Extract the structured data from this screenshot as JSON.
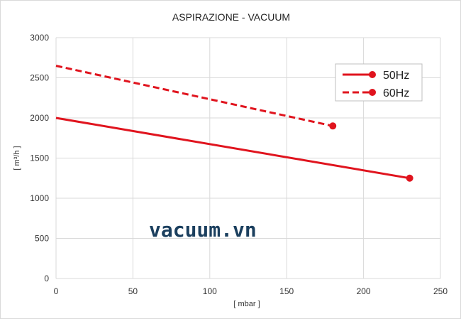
{
  "chart_data": {
    "type": "line",
    "title": "ASPIRAZIONE - VACUUM",
    "xlabel": "[ mbar ]",
    "ylabel": "[ m³/h ]",
    "xlim": [
      0,
      250
    ],
    "ylim": [
      0,
      3000
    ],
    "x_ticks": [
      0,
      50,
      100,
      150,
      200,
      250
    ],
    "y_ticks": [
      0,
      500,
      1000,
      1500,
      2000,
      2500,
      3000
    ],
    "grid": true,
    "legend_position": "top-right",
    "series": [
      {
        "name": "50Hz",
        "x": [
          0,
          230
        ],
        "y": [
          2000,
          1250
        ],
        "style": "solid",
        "color": "#e0141e"
      },
      {
        "name": "60Hz",
        "x": [
          0,
          180
        ],
        "y": [
          2650,
          1900
        ],
        "style": "dashed",
        "color": "#e0141e"
      }
    ]
  },
  "watermark": "vacuum.vn",
  "colors": {
    "series": "#e0141e",
    "grid": "#d9d9d9"
  }
}
